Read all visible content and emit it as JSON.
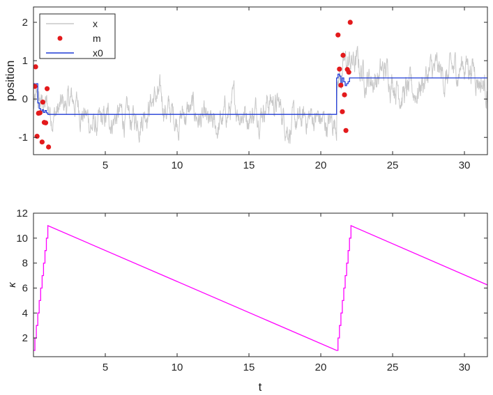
{
  "chart_data": [
    {
      "type": "line",
      "title": "",
      "xlabel": "",
      "ylabel": "position",
      "xlim": [
        0,
        31.6
      ],
      "ylim": [
        -1.45,
        2.4
      ],
      "xticks": [
        5,
        10,
        15,
        20,
        25,
        30
      ],
      "yticks": [
        -1,
        0,
        1,
        2
      ],
      "grid": false,
      "legend_position": "top-left",
      "series": [
        {
          "name": "x",
          "style": "line",
          "color": "#c8c8c8",
          "description_of_trend": "noisy signal around -0.4 for t<21, around 0.55 for t>21",
          "approx_mean_segments": [
            {
              "t_start": 0,
              "t_end": 21.1,
              "mean": -0.4,
              "amplitude": 0.6
            },
            {
              "t_start": 21.1,
              "t_end": 31.6,
              "mean": 0.55,
              "amplitude": 0.65
            }
          ]
        },
        {
          "name": "m",
          "style": "markers",
          "color": "#e31a1c",
          "points": [
            {
              "t": 0.1,
              "y": 0.33
            },
            {
              "t": 0.15,
              "y": 0.84
            },
            {
              "t": 0.25,
              "y": -0.97
            },
            {
              "t": 0.35,
              "y": -0.37
            },
            {
              "t": 0.45,
              "y": -0.36
            },
            {
              "t": 0.6,
              "y": -1.12
            },
            {
              "t": 0.65,
              "y": -0.08
            },
            {
              "t": 0.75,
              "y": -0.61
            },
            {
              "t": 0.85,
              "y": -0.62
            },
            {
              "t": 0.95,
              "y": 0.27
            },
            {
              "t": 1.05,
              "y": -1.25
            },
            {
              "t": 21.2,
              "y": 1.67
            },
            {
              "t": 21.3,
              "y": 0.78
            },
            {
              "t": 21.4,
              "y": 0.36
            },
            {
              "t": 21.5,
              "y": -0.33
            },
            {
              "t": 21.55,
              "y": 1.14
            },
            {
              "t": 21.65,
              "y": 0.11
            },
            {
              "t": 21.75,
              "y": -0.82
            },
            {
              "t": 21.85,
              "y": 0.77
            },
            {
              "t": 21.95,
              "y": 0.7
            },
            {
              "t": 22.05,
              "y": 2.0
            }
          ]
        },
        {
          "name": "x0",
          "style": "step",
          "color": "#1f3bd6",
          "points": [
            [
              0.0,
              0.4
            ],
            [
              0.1,
              0.4
            ],
            [
              0.1,
              0.35
            ],
            [
              0.2,
              0.35
            ],
            [
              0.2,
              0.4
            ],
            [
              0.3,
              0.4
            ],
            [
              0.3,
              -0.1
            ],
            [
              0.4,
              -0.1
            ],
            [
              0.4,
              -0.25
            ],
            [
              0.5,
              -0.25
            ],
            [
              0.5,
              -0.33
            ],
            [
              0.6,
              -0.33
            ],
            [
              0.6,
              -0.28
            ],
            [
              0.7,
              -0.28
            ],
            [
              0.7,
              -0.35
            ],
            [
              0.8,
              -0.35
            ],
            [
              0.8,
              -0.3
            ],
            [
              0.9,
              -0.3
            ],
            [
              0.9,
              -0.36
            ],
            [
              1.0,
              -0.36
            ],
            [
              1.0,
              -0.4
            ],
            [
              21.1,
              -0.4
            ],
            [
              21.1,
              0.55
            ],
            [
              21.2,
              0.55
            ],
            [
              21.2,
              0.65
            ],
            [
              21.3,
              0.65
            ],
            [
              21.3,
              0.6
            ],
            [
              21.4,
              0.6
            ],
            [
              21.4,
              0.35
            ],
            [
              21.5,
              0.35
            ],
            [
              21.5,
              0.55
            ],
            [
              21.6,
              0.55
            ],
            [
              21.6,
              0.45
            ],
            [
              21.7,
              0.45
            ],
            [
              21.7,
              0.35
            ],
            [
              21.8,
              0.35
            ],
            [
              21.8,
              0.4
            ],
            [
              21.9,
              0.4
            ],
            [
              21.9,
              0.45
            ],
            [
              22.0,
              0.45
            ],
            [
              22.0,
              0.55
            ],
            [
              31.6,
              0.55
            ]
          ]
        }
      ]
    },
    {
      "type": "line",
      "title": "",
      "xlabel": "t",
      "ylabel": "κ",
      "xlim": [
        0,
        31.6
      ],
      "ylim": [
        0.5,
        12
      ],
      "xticks": [
        5,
        10,
        15,
        20,
        25,
        30
      ],
      "yticks": [
        2,
        4,
        6,
        8,
        10,
        12
      ],
      "grid": false,
      "series": [
        {
          "name": "κ",
          "style": "line",
          "color": "#ff00ff",
          "points": [
            [
              0.0,
              1
            ],
            [
              0.1,
              1
            ],
            [
              0.1,
              2
            ],
            [
              0.2,
              2
            ],
            [
              0.2,
              3
            ],
            [
              0.3,
              3
            ],
            [
              0.3,
              4
            ],
            [
              0.4,
              4
            ],
            [
              0.4,
              5
            ],
            [
              0.5,
              5
            ],
            [
              0.5,
              6
            ],
            [
              0.6,
              6
            ],
            [
              0.6,
              7
            ],
            [
              0.7,
              7
            ],
            [
              0.7,
              8
            ],
            [
              0.8,
              8
            ],
            [
              0.8,
              9
            ],
            [
              0.9,
              9
            ],
            [
              0.9,
              10
            ],
            [
              1.0,
              10
            ],
            [
              1.0,
              11
            ],
            [
              21.1,
              1.0
            ],
            [
              21.2,
              1.0
            ],
            [
              21.2,
              2
            ],
            [
              21.3,
              2
            ],
            [
              21.3,
              3
            ],
            [
              21.4,
              3
            ],
            [
              21.4,
              4
            ],
            [
              21.5,
              4
            ],
            [
              21.5,
              5
            ],
            [
              21.6,
              5
            ],
            [
              21.6,
              6
            ],
            [
              21.7,
              6
            ],
            [
              21.7,
              7
            ],
            [
              21.8,
              7
            ],
            [
              21.8,
              8
            ],
            [
              21.9,
              8
            ],
            [
              21.9,
              9
            ],
            [
              22.0,
              9
            ],
            [
              22.0,
              10
            ],
            [
              22.1,
              10
            ],
            [
              22.1,
              11
            ],
            [
              31.6,
              6.25
            ]
          ]
        }
      ]
    }
  ]
}
